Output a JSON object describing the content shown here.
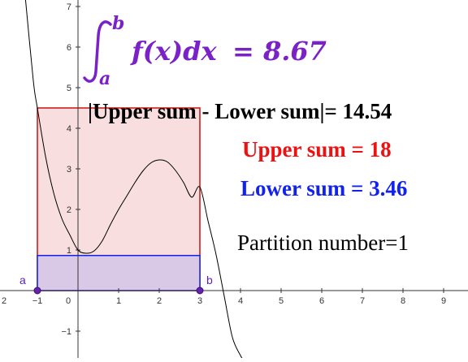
{
  "colors": {
    "upper": "#cc1111",
    "upper_fill": "#f8dede",
    "lower": "#1122ee",
    "lower_fill": "#d9c8e6",
    "integral": "#7a22c8",
    "point": "#6622aa",
    "curve": "#000000"
  },
  "integral": {
    "upper_limit": "b",
    "lower_limit": "a",
    "integrand": "f(x)dx",
    "equals": "= 8.67"
  },
  "labels": {
    "diff_text": "|Upper sum - Lower sum|= 14.54",
    "upper_text": "Upper sum = 18",
    "lower_text": "Lower sum = 3.46",
    "partition_text": "Partition number=1"
  },
  "points": {
    "a_label": "a",
    "b_label": "b"
  },
  "chart_data": {
    "type": "line",
    "x_ticks": [
      "2",
      "−1",
      "0",
      "1",
      "2",
      "3",
      "4",
      "5",
      "6",
      "7",
      "8",
      "9"
    ],
    "y_ticks": [
      "7",
      "6",
      "5",
      "4",
      "3",
      "2",
      "1",
      "−1"
    ],
    "function_samples": {
      "x": [
        -1.3,
        -1.1,
        -1.0,
        -0.8,
        -0.6,
        -0.4,
        -0.2,
        0.0,
        0.2,
        0.4,
        0.6,
        0.8,
        1.0,
        1.2,
        1.4,
        1.6,
        1.8,
        2.0,
        2.2,
        2.4,
        2.6,
        2.8,
        3.0,
        3.2,
        3.4,
        3.6,
        3.8,
        4.0,
        4.04
      ],
      "y": [
        7.26,
        5.17,
        4.5,
        3.31,
        2.41,
        1.78,
        1.37,
        1.0,
        0.92,
        0.98,
        1.23,
        1.63,
        2.0,
        2.33,
        2.66,
        2.95,
        3.15,
        3.22,
        3.17,
        2.96,
        2.66,
        2.3,
        2.55,
        1.72,
        0.88,
        -0.14,
        -1.15,
        -1.6,
        -1.65
      ]
    },
    "interval": {
      "a": -1,
      "b": 3
    },
    "upper_rect": {
      "x_from": -1,
      "x_to": 3,
      "height": 4.5
    },
    "lower_rect": {
      "x_from": -1,
      "x_to": 3,
      "height": 0.865
    },
    "xlim": [
      -2.6,
      9.6
    ],
    "ylim": [
      -1.65,
      7.3
    ],
    "grid": false
  }
}
